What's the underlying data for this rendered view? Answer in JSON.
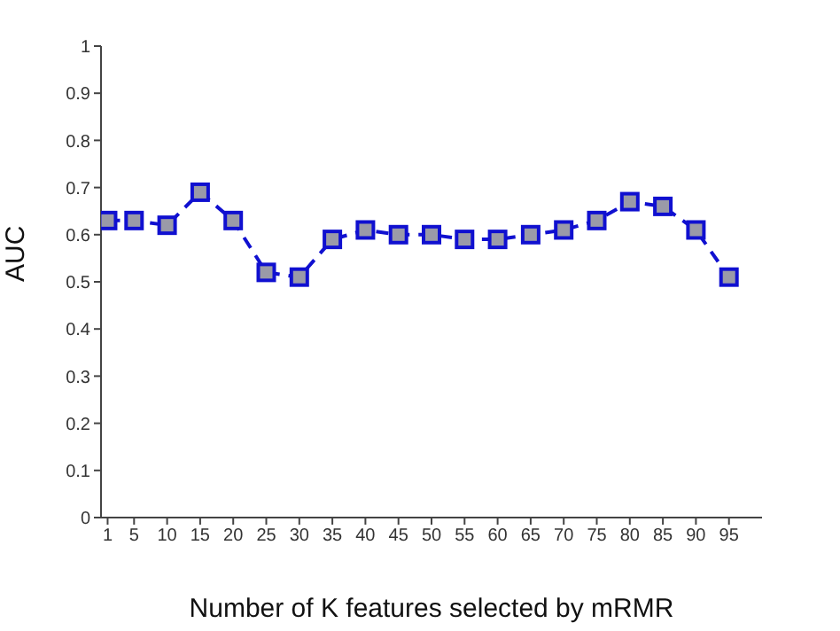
{
  "chart_data": {
    "type": "line",
    "xlabel": "Number of K features selected by mRMR",
    "ylabel": "AUC",
    "x": [
      1,
      5,
      10,
      15,
      20,
      25,
      30,
      35,
      40,
      45,
      50,
      55,
      60,
      65,
      70,
      75,
      80,
      85,
      90,
      95
    ],
    "series": [
      {
        "color": "#1010d0",
        "values": [
          0.63,
          0.63,
          0.62,
          0.69,
          0.63,
          0.52,
          0.51,
          0.59,
          0.61,
          0.6,
          0.6,
          0.59,
          0.59,
          0.6,
          0.61,
          0.63,
          0.67,
          0.66,
          0.61,
          0.51
        ]
      }
    ],
    "xlim": [
      0,
      100
    ],
    "xticks": [
      1,
      5,
      10,
      15,
      20,
      25,
      30,
      35,
      40,
      45,
      50,
      55,
      60,
      65,
      70,
      75,
      80,
      85,
      90,
      95
    ],
    "ylim": [
      0,
      1
    ],
    "yticks": [
      0,
      0.1,
      0.2,
      0.3,
      0.4,
      0.5,
      0.6,
      0.7,
      0.8,
      0.9,
      1
    ],
    "grid": false,
    "legend": false,
    "marker": "square",
    "line_style": "dashed"
  }
}
